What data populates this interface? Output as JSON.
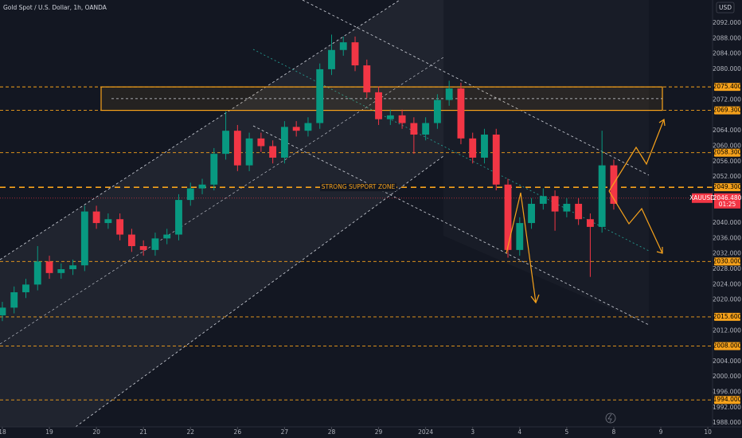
{
  "chart_data": {
    "type": "candlestick",
    "title": "Gold Spot / U.S. Dollar, 1h, OANDA",
    "currency": "USD",
    "up_color": "#089981",
    "down_color": "#f23645",
    "level_color": "#f7a21b",
    "x": [
      0,
      0.25,
      0.5,
      0.75,
      1,
      1.25,
      1.5,
      1.75,
      2,
      2.25,
      2.5,
      2.75,
      3,
      3.25,
      3.5,
      3.75,
      4,
      4.25,
      4.5,
      4.75,
      5,
      5.25,
      5.5,
      5.75,
      6,
      6.25,
      6.5,
      6.75,
      7,
      7.25,
      7.5,
      7.75,
      8,
      8.25,
      8.5,
      8.75,
      9,
      9.25,
      9.5,
      9.75,
      10,
      10.25,
      10.5,
      10.75,
      11,
      11.25,
      11.5,
      11.75,
      12,
      12.25,
      12.5,
      12.75,
      13
    ],
    "open": [
      2016,
      2018,
      2022,
      2024,
      2030,
      2027,
      2028,
      2029,
      2043,
      2040,
      2041,
      2037,
      2034,
      2033,
      2036,
      2037,
      2046,
      2049,
      2050,
      2058,
      2064,
      2055,
      2062,
      2060,
      2057,
      2065,
      2064,
      2066,
      2080,
      2085,
      2087,
      2081,
      2074,
      2067,
      2068,
      2066,
      2063,
      2066,
      2072,
      2075,
      2062,
      2057,
      2063,
      2050,
      2033,
      2040,
      2045,
      2047,
      2043,
      2045,
      2041,
      2039,
      2055
    ],
    "high": [
      2019.5,
      2023.5,
      2025.5,
      2034,
      2031.5,
      2029.5,
      2030.5,
      2044.5,
      2044.5,
      2042.5,
      2042.5,
      2038.5,
      2035.5,
      2037.5,
      2038.5,
      2047.5,
      2050.5,
      2051.5,
      2059.5,
      2069,
      2065.5,
      2063.5,
      2063.5,
      2061.5,
      2066.5,
      2066.5,
      2067.5,
      2081.5,
      2089,
      2088.5,
      2088.5,
      2082.5,
      2075.5,
      2069.5,
      2069.5,
      2067.5,
      2067.5,
      2073.5,
      2077,
      2076.5,
      2063.5,
      2064.5,
      2064.5,
      2051.5,
      2041.5,
      2046.5,
      2049,
      2048.5,
      2046.5,
      2046.5,
      2042.5,
      2064,
      2056.5
    ],
    "low": [
      2014.5,
      2016.5,
      2020.5,
      2022.5,
      2025.5,
      2025.5,
      2026.5,
      2027.5,
      2038.5,
      2038.5,
      2035.5,
      2032.5,
      2031.5,
      2031.5,
      2034.5,
      2035.5,
      2044.5,
      2047.5,
      2048.5,
      2056.5,
      2053.5,
      2053.5,
      2058.5,
      2055.5,
      2055.5,
      2062.5,
      2062.5,
      2064.5,
      2078.5,
      2083.5,
      2079.5,
      2072.5,
      2065.5,
      2065.5,
      2064.5,
      2058,
      2061.5,
      2064.5,
      2070.5,
      2060.5,
      2055.5,
      2055.5,
      2048.5,
      2031,
      2031.5,
      2038.5,
      2043.5,
      2038,
      2041.5,
      2039.5,
      2026,
      2037.5,
      2043.5
    ],
    "close": [
      2018,
      2022,
      2024,
      2030,
      2027,
      2028,
      2029,
      2043,
      2040,
      2041,
      2037,
      2034,
      2033,
      2036,
      2037,
      2046,
      2049,
      2050,
      2058,
      2064,
      2055,
      2062,
      2060,
      2057,
      2065,
      2064,
      2066,
      2080,
      2085,
      2087,
      2081,
      2074,
      2067,
      2068,
      2066,
      2063,
      2066,
      2072,
      2075,
      2062,
      2057,
      2063,
      2050,
      2033,
      2040,
      2045,
      2047,
      2043,
      2045,
      2041,
      2039,
      2055,
      2045
    ],
    "xlim": [
      -0.05,
      15.1
    ],
    "ylim": [
      1987,
      2098
    ],
    "xticks": [
      {
        "value": 0,
        "label": "18"
      },
      {
        "value": 1,
        "label": "19"
      },
      {
        "value": 2,
        "label": "20"
      },
      {
        "value": 3,
        "label": "21"
      },
      {
        "value": 4,
        "label": "22"
      },
      {
        "value": 5,
        "label": "26"
      },
      {
        "value": 6,
        "label": "27"
      },
      {
        "value": 7,
        "label": "28"
      },
      {
        "value": 8,
        "label": "29"
      },
      {
        "value": 9,
        "label": "2024"
      },
      {
        "value": 10,
        "label": "3"
      },
      {
        "value": 11,
        "label": "4"
      },
      {
        "value": 12,
        "label": "5"
      },
      {
        "value": 13,
        "label": "8"
      },
      {
        "value": 14,
        "label": "9"
      },
      {
        "value": 15,
        "label": "10"
      }
    ],
    "yticks": [
      {
        "value": 2092,
        "label": "2092.000"
      },
      {
        "value": 2088,
        "label": "2088.000"
      },
      {
        "value": 2084,
        "label": "2084.000"
      },
      {
        "value": 2080,
        "label": "2080.000"
      },
      {
        "value": 2072,
        "label": "2072.000"
      },
      {
        "value": 2064,
        "label": "2064.000"
      },
      {
        "value": 2060,
        "label": "2060.000"
      },
      {
        "value": 2056,
        "label": "2056.000"
      },
      {
        "value": 2052,
        "label": "2052.000"
      },
      {
        "value": 2040,
        "label": "2040.000"
      },
      {
        "value": 2036,
        "label": "2036.000"
      },
      {
        "value": 2032,
        "label": "2032.000"
      },
      {
        "value": 2028,
        "label": "2028.000"
      },
      {
        "value": 2024,
        "label": "2024.000"
      },
      {
        "value": 2020,
        "label": "2020.000"
      },
      {
        "value": 2012,
        "label": "2012.000"
      },
      {
        "value": 2004,
        "label": "2004.000"
      },
      {
        "value": 2000,
        "label": "2000.000"
      },
      {
        "value": 1996,
        "label": "1996.000"
      },
      {
        "value": 1992,
        "label": "1992.000"
      },
      {
        "value": 1988,
        "label": "1988.000"
      }
    ],
    "levels": [
      {
        "value": 2075.4,
        "label": "2075.400"
      },
      {
        "value": 2069.3,
        "label": "2069.300"
      },
      {
        "value": 2058.3,
        "label": "2058.300"
      },
      {
        "value": 2049.3,
        "label": "2049.300"
      },
      {
        "value": 2030,
        "label": "2030.000"
      },
      {
        "value": 2015.6,
        "label": "2015.600"
      },
      {
        "value": 2008,
        "label": "2008.000"
      },
      {
        "value": 1994,
        "label": "1994.000"
      }
    ],
    "support_label": "STRONG SUPPORT ZONE",
    "current": {
      "symbol": "XAUUSD",
      "value": 2046.48,
      "label": "2046.480",
      "countdown": "01:25"
    }
  }
}
